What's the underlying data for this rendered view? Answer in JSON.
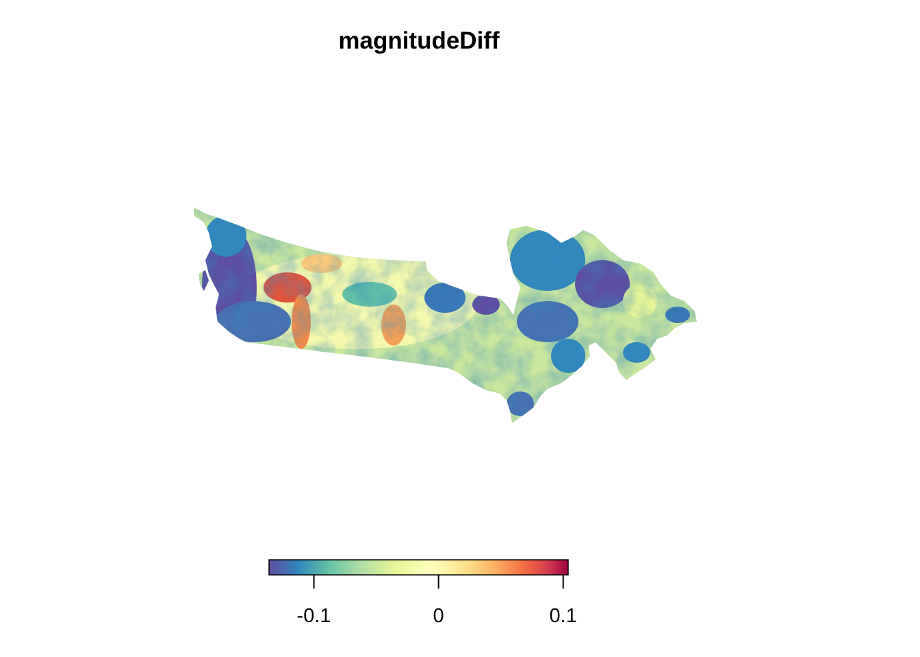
{
  "title": "magnitudeDiff",
  "legend": {
    "type": "continuous-colorbar",
    "orientation": "horizontal",
    "placement": "bottom-center",
    "range": [
      -0.136,
      0.104
    ],
    "palette": [
      "#5E4FA2",
      "#3288BD",
      "#66C2A5",
      "#ABDDA4",
      "#E6F598",
      "#FFFFBF",
      "#FEE08B",
      "#FDAE61",
      "#F46D43",
      "#D53E4F",
      "#9E0142"
    ],
    "ticks": [
      {
        "value": -0.1,
        "label": "-0.1"
      },
      {
        "value": 0,
        "label": "0"
      },
      {
        "value": 0.1,
        "label": "0.1"
      }
    ]
  },
  "map": {
    "region": "Canada (southern extent)",
    "fill": "spatial raster of magnitudeDiff values",
    "colors": {
      "low": "#5E4FA2",
      "mid": "#FFFFBF",
      "high": "#D53E4F"
    }
  }
}
